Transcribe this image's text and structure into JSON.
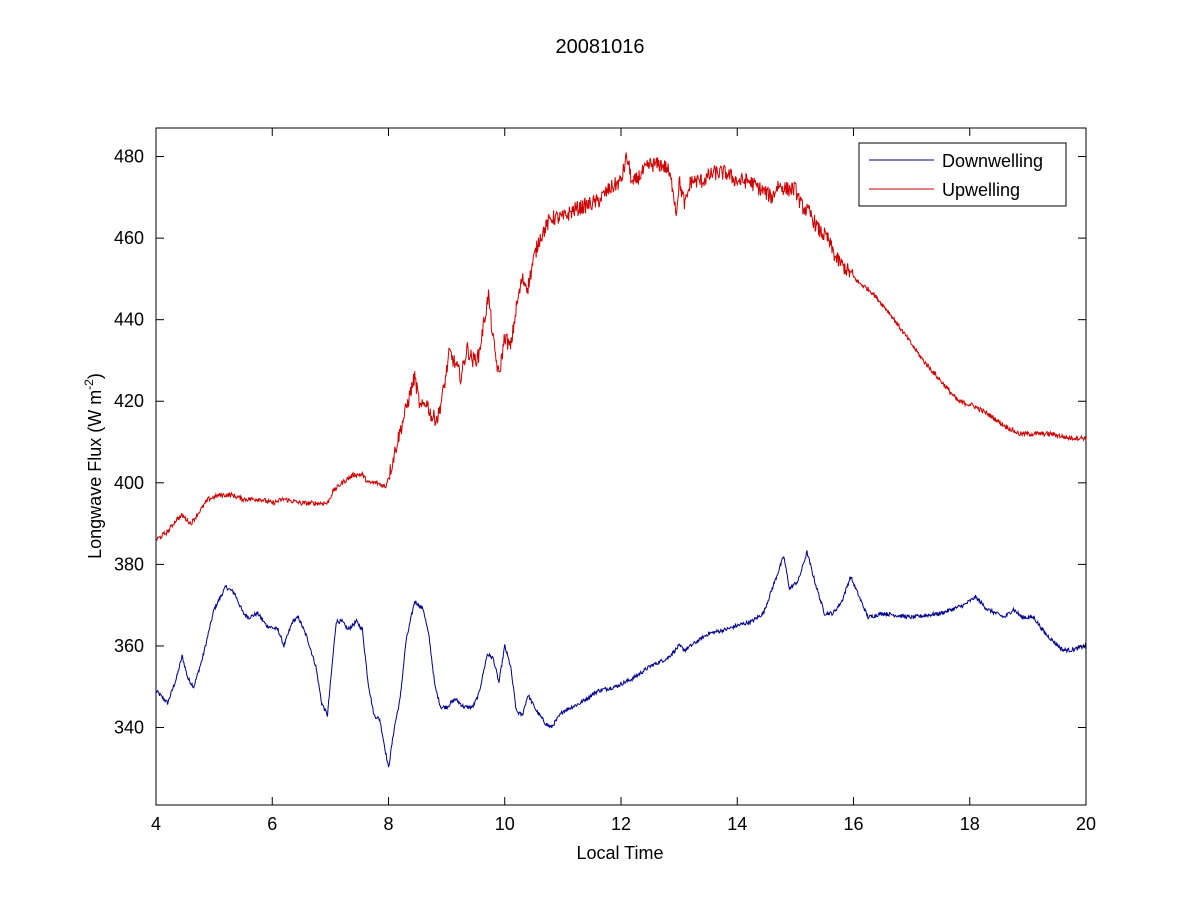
{
  "chart_data": {
    "type": "line",
    "title": "20081016",
    "xlabel": "Local Time",
    "ylabel_main": "Longwave Flux (W m",
    "ylabel_sup": "-2",
    "ylabel_close": ")",
    "xlim": [
      4,
      20
    ],
    "ylim": [
      321,
      487
    ],
    "xticks": [
      4,
      6,
      8,
      10,
      12,
      14,
      16,
      18,
      20
    ],
    "yticks": [
      340,
      360,
      380,
      400,
      420,
      440,
      460,
      480
    ],
    "xtick_labels": [
      "4",
      "6",
      "8",
      "10",
      "12",
      "14",
      "16",
      "18",
      "20"
    ],
    "ytick_labels": [
      "340",
      "360",
      "380",
      "400",
      "420",
      "440",
      "460",
      "480"
    ],
    "grid": false,
    "legend_position": "top-right",
    "series": [
      {
        "name": "Downwelling",
        "color": "#00008b",
        "noise": 0.5,
        "points": [
          [
            4.0,
            349
          ],
          [
            4.2,
            346
          ],
          [
            4.35,
            352
          ],
          [
            4.45,
            357.5
          ],
          [
            4.55,
            352
          ],
          [
            4.65,
            350
          ],
          [
            4.8,
            357
          ],
          [
            5.0,
            369
          ],
          [
            5.2,
            374.5
          ],
          [
            5.35,
            373
          ],
          [
            5.5,
            368
          ],
          [
            5.6,
            367
          ],
          [
            5.75,
            368
          ],
          [
            5.9,
            365
          ],
          [
            6.1,
            364
          ],
          [
            6.2,
            360
          ],
          [
            6.35,
            366
          ],
          [
            6.45,
            367
          ],
          [
            6.6,
            362
          ],
          [
            6.75,
            355
          ],
          [
            6.85,
            346
          ],
          [
            6.95,
            343
          ],
          [
            7.1,
            366
          ],
          [
            7.2,
            366
          ],
          [
            7.3,
            364
          ],
          [
            7.45,
            366
          ],
          [
            7.55,
            364
          ],
          [
            7.65,
            351
          ],
          [
            7.75,
            343
          ],
          [
            7.85,
            342
          ],
          [
            8.0,
            330
          ],
          [
            8.1,
            340
          ],
          [
            8.2,
            347
          ],
          [
            8.3,
            361
          ],
          [
            8.45,
            371
          ],
          [
            8.6,
            369
          ],
          [
            8.7,
            362
          ],
          [
            8.8,
            350
          ],
          [
            8.9,
            345
          ],
          [
            9.0,
            345
          ],
          [
            9.15,
            347
          ],
          [
            9.3,
            345
          ],
          [
            9.45,
            345
          ],
          [
            9.55,
            348
          ],
          [
            9.7,
            358
          ],
          [
            9.8,
            357
          ],
          [
            9.9,
            351
          ],
          [
            10.0,
            360
          ],
          [
            10.1,
            355
          ],
          [
            10.2,
            344
          ],
          [
            10.3,
            343
          ],
          [
            10.4,
            348
          ],
          [
            10.55,
            344
          ],
          [
            10.7,
            341
          ],
          [
            10.8,
            340
          ],
          [
            11.0,
            344
          ],
          [
            11.3,
            346
          ],
          [
            11.6,
            349
          ],
          [
            11.9,
            350
          ],
          [
            12.2,
            352
          ],
          [
            12.5,
            355
          ],
          [
            12.8,
            357
          ],
          [
            13.0,
            360
          ],
          [
            13.1,
            359
          ],
          [
            13.2,
            360
          ],
          [
            13.5,
            363
          ],
          [
            13.8,
            364
          ],
          [
            14.0,
            365
          ],
          [
            14.25,
            366
          ],
          [
            14.45,
            368
          ],
          [
            14.65,
            376
          ],
          [
            14.8,
            382
          ],
          [
            14.9,
            374
          ],
          [
            15.05,
            376
          ],
          [
            15.2,
            383
          ],
          [
            15.35,
            375
          ],
          [
            15.5,
            368
          ],
          [
            15.65,
            368
          ],
          [
            15.8,
            371
          ],
          [
            15.95,
            377
          ],
          [
            16.1,
            372
          ],
          [
            16.25,
            367
          ],
          [
            16.5,
            368
          ],
          [
            17.0,
            367
          ],
          [
            17.5,
            368
          ],
          [
            17.9,
            370
          ],
          [
            18.1,
            372
          ],
          [
            18.3,
            369
          ],
          [
            18.6,
            367
          ],
          [
            18.75,
            369
          ],
          [
            18.9,
            367
          ],
          [
            19.1,
            367
          ],
          [
            19.3,
            363
          ],
          [
            19.6,
            359
          ],
          [
            19.75,
            359
          ],
          [
            20.0,
            360
          ]
        ]
      },
      {
        "name": "Upwelling",
        "color": "#cc0000",
        "noise": 0.6,
        "points": [
          [
            4.0,
            386
          ],
          [
            4.2,
            388
          ],
          [
            4.35,
            391
          ],
          [
            4.45,
            392
          ],
          [
            4.6,
            390
          ],
          [
            4.75,
            393
          ],
          [
            4.9,
            396
          ],
          [
            5.1,
            397
          ],
          [
            5.3,
            397
          ],
          [
            5.5,
            396
          ],
          [
            5.8,
            396
          ],
          [
            6.0,
            395
          ],
          [
            6.2,
            396
          ],
          [
            6.5,
            395
          ],
          [
            6.8,
            395
          ],
          [
            6.95,
            395
          ],
          [
            7.05,
            398
          ],
          [
            7.2,
            400
          ],
          [
            7.4,
            402
          ],
          [
            7.55,
            402
          ],
          [
            7.65,
            400
          ],
          [
            7.8,
            400
          ],
          [
            7.95,
            399
          ],
          [
            8.05,
            404
          ],
          [
            8.15,
            410
          ],
          [
            8.3,
            418
          ],
          [
            8.45,
            426
          ],
          [
            8.55,
            418
          ],
          [
            8.65,
            420
          ],
          [
            8.75,
            416
          ],
          [
            8.85,
            416
          ],
          [
            8.95,
            423
          ],
          [
            9.05,
            432
          ],
          [
            9.15,
            429
          ],
          [
            9.25,
            426
          ],
          [
            9.35,
            433
          ],
          [
            9.45,
            430
          ],
          [
            9.55,
            431
          ],
          [
            9.65,
            440
          ],
          [
            9.72,
            446
          ],
          [
            9.8,
            435
          ],
          [
            9.9,
            426
          ],
          [
            10.0,
            436
          ],
          [
            10.1,
            433
          ],
          [
            10.2,
            443
          ],
          [
            10.3,
            450
          ],
          [
            10.4,
            448
          ],
          [
            10.5,
            455
          ],
          [
            10.6,
            460
          ],
          [
            10.8,
            465
          ],
          [
            11.0,
            465
          ],
          [
            11.2,
            467
          ],
          [
            11.4,
            468
          ],
          [
            11.6,
            469
          ],
          [
            11.8,
            472
          ],
          [
            12.0,
            474
          ],
          [
            12.1,
            480
          ],
          [
            12.2,
            473
          ],
          [
            12.3,
            475
          ],
          [
            12.5,
            478
          ],
          [
            12.7,
            478
          ],
          [
            12.8,
            477
          ],
          [
            12.9,
            472
          ],
          [
            12.95,
            466
          ],
          [
            13.0,
            474
          ],
          [
            13.1,
            468
          ],
          [
            13.2,
            474
          ],
          [
            13.4,
            474
          ],
          [
            13.6,
            476
          ],
          [
            13.8,
            476
          ],
          [
            14.0,
            474
          ],
          [
            14.2,
            474
          ],
          [
            14.4,
            472
          ],
          [
            14.6,
            470
          ],
          [
            14.7,
            473
          ],
          [
            14.85,
            472
          ],
          [
            15.0,
            472
          ],
          [
            15.1,
            468
          ],
          [
            15.25,
            466
          ],
          [
            15.4,
            462
          ],
          [
            15.55,
            460
          ],
          [
            15.7,
            455
          ],
          [
            15.9,
            452
          ],
          [
            16.1,
            449
          ],
          [
            16.3,
            447
          ],
          [
            16.6,
            442
          ],
          [
            16.9,
            436
          ],
          [
            17.2,
            430
          ],
          [
            17.5,
            425
          ],
          [
            17.8,
            420
          ],
          [
            18.05,
            419
          ],
          [
            18.3,
            417
          ],
          [
            18.6,
            414
          ],
          [
            18.85,
            412
          ],
          [
            19.1,
            412
          ],
          [
            19.4,
            412
          ],
          [
            19.7,
            411
          ],
          [
            20.0,
            411
          ]
        ]
      }
    ]
  }
}
